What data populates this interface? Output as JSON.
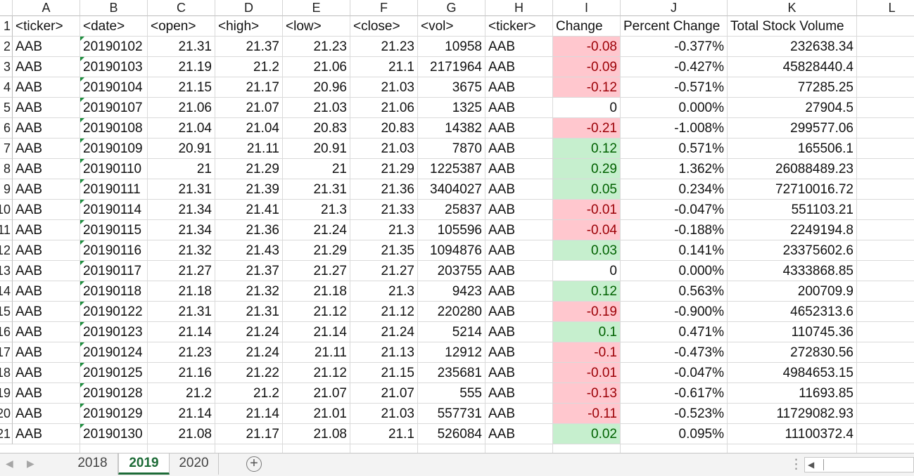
{
  "columns": [
    "A",
    "B",
    "C",
    "D",
    "E",
    "F",
    "G",
    "H",
    "I",
    "J",
    "K",
    "L"
  ],
  "header_row": {
    "row_number": "1",
    "cells": [
      "<ticker>",
      "<date>",
      "<open>",
      "<high>",
      "<low>",
      "<close>",
      "<vol>",
      "<ticker>",
      "Change",
      "Percent Change",
      "Total Stock Volume"
    ]
  },
  "rows": [
    {
      "row_number": "2",
      "cells": [
        "AAB",
        "20190102",
        "21.31",
        "21.37",
        "21.23",
        "21.23",
        "10958",
        "AAB",
        "-0.08",
        "-0.377%",
        "232638.34"
      ]
    },
    {
      "row_number": "3",
      "cells": [
        "AAB",
        "20190103",
        "21.19",
        "21.2",
        "21.06",
        "21.1",
        "2171964",
        "AAB",
        "-0.09",
        "-0.427%",
        "45828440.4"
      ]
    },
    {
      "row_number": "4",
      "cells": [
        "AAB",
        "20190104",
        "21.15",
        "21.17",
        "20.96",
        "21.03",
        "3675",
        "AAB",
        "-0.12",
        "-0.571%",
        "77285.25"
      ]
    },
    {
      "row_number": "5",
      "cells": [
        "AAB",
        "20190107",
        "21.06",
        "21.07",
        "21.03",
        "21.06",
        "1325",
        "AAB",
        "0",
        "0.000%",
        "27904.5"
      ]
    },
    {
      "row_number": "6",
      "cells": [
        "AAB",
        "20190108",
        "21.04",
        "21.04",
        "20.83",
        "20.83",
        "14382",
        "AAB",
        "-0.21",
        "-1.008%",
        "299577.06"
      ]
    },
    {
      "row_number": "7",
      "cells": [
        "AAB",
        "20190109",
        "20.91",
        "21.11",
        "20.91",
        "21.03",
        "7870",
        "AAB",
        "0.12",
        "0.571%",
        "165506.1"
      ]
    },
    {
      "row_number": "8",
      "cells": [
        "AAB",
        "20190110",
        "21",
        "21.29",
        "21",
        "21.29",
        "1225387",
        "AAB",
        "0.29",
        "1.362%",
        "26088489.23"
      ]
    },
    {
      "row_number": "9",
      "cells": [
        "AAB",
        "20190111",
        "21.31",
        "21.39",
        "21.31",
        "21.36",
        "3404027",
        "AAB",
        "0.05",
        "0.234%",
        "72710016.72"
      ]
    },
    {
      "row_number": "10",
      "cells": [
        "AAB",
        "20190114",
        "21.34",
        "21.41",
        "21.3",
        "21.33",
        "25837",
        "AAB",
        "-0.01",
        "-0.047%",
        "551103.21"
      ]
    },
    {
      "row_number": "11",
      "cells": [
        "AAB",
        "20190115",
        "21.34",
        "21.36",
        "21.24",
        "21.3",
        "105596",
        "AAB",
        "-0.04",
        "-0.188%",
        "2249194.8"
      ]
    },
    {
      "row_number": "12",
      "cells": [
        "AAB",
        "20190116",
        "21.32",
        "21.43",
        "21.29",
        "21.35",
        "1094876",
        "AAB",
        "0.03",
        "0.141%",
        "23375602.6"
      ]
    },
    {
      "row_number": "13",
      "cells": [
        "AAB",
        "20190117",
        "21.27",
        "21.37",
        "21.27",
        "21.27",
        "203755",
        "AAB",
        "0",
        "0.000%",
        "4333868.85"
      ]
    },
    {
      "row_number": "14",
      "cells": [
        "AAB",
        "20190118",
        "21.18",
        "21.32",
        "21.18",
        "21.3",
        "9423",
        "AAB",
        "0.12",
        "0.563%",
        "200709.9"
      ]
    },
    {
      "row_number": "15",
      "cells": [
        "AAB",
        "20190122",
        "21.31",
        "21.31",
        "21.12",
        "21.12",
        "220280",
        "AAB",
        "-0.19",
        "-0.900%",
        "4652313.6"
      ]
    },
    {
      "row_number": "16",
      "cells": [
        "AAB",
        "20190123",
        "21.14",
        "21.24",
        "21.14",
        "21.24",
        "5214",
        "AAB",
        "0.1",
        "0.471%",
        "110745.36"
      ]
    },
    {
      "row_number": "17",
      "cells": [
        "AAB",
        "20190124",
        "21.23",
        "21.24",
        "21.11",
        "21.13",
        "12912",
        "AAB",
        "-0.1",
        "-0.473%",
        "272830.56"
      ]
    },
    {
      "row_number": "18",
      "cells": [
        "AAB",
        "20190125",
        "21.16",
        "21.22",
        "21.12",
        "21.15",
        "235681",
        "AAB",
        "-0.01",
        "-0.047%",
        "4984653.15"
      ]
    },
    {
      "row_number": "19",
      "cells": [
        "AAB",
        "20190128",
        "21.2",
        "21.2",
        "21.07",
        "21.07",
        "555",
        "AAB",
        "-0.13",
        "-0.617%",
        "11693.85"
      ]
    },
    {
      "row_number": "20",
      "cells": [
        "AAB",
        "20190129",
        "21.14",
        "21.14",
        "21.01",
        "21.03",
        "557731",
        "AAB",
        "-0.11",
        "-0.523%",
        "11729082.93"
      ]
    },
    {
      "row_number": "21",
      "cells": [
        "AAB",
        "20190130",
        "21.08",
        "21.17",
        "21.08",
        "21.1",
        "526084",
        "AAB",
        "0.02",
        "0.095%",
        "11100372.4"
      ]
    }
  ],
  "sheet_tabs": [
    {
      "label": "2018",
      "active": false
    },
    {
      "label": "2019",
      "active": true
    },
    {
      "label": "2020",
      "active": false
    }
  ],
  "add_sheet_icon": "plus-circle-icon",
  "colors": {
    "negative_fill": "#ffc7ce",
    "negative_text": "#9c0006",
    "positive_fill": "#c6efce",
    "positive_text": "#006100",
    "active_tab": "#1d6b37"
  }
}
